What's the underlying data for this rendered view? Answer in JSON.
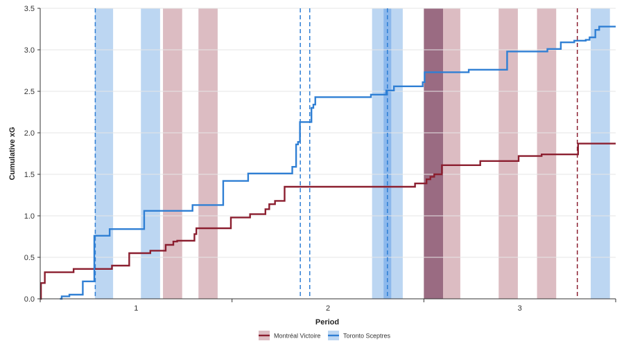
{
  "chart_data": {
    "type": "line",
    "xlabel": "Period",
    "ylabel": "Cumulative xG",
    "xlim": [
      0.5,
      3.5
    ],
    "ylim": [
      0,
      3.5
    ],
    "xticks": [
      1,
      2,
      3
    ],
    "xtick_labels": [
      "1",
      "2",
      "3"
    ],
    "xminor_ticks": [
      0.5,
      1.5,
      2.5,
      3.5
    ],
    "yticks": [
      0,
      0.5,
      1.0,
      1.5,
      2.0,
      2.5,
      3.0,
      3.5
    ],
    "ytick_labels": [
      "0.0",
      "0.5",
      "1.0",
      "1.5",
      "2.0",
      "2.5",
      "3.0",
      "3.5"
    ],
    "grid": "horizontal",
    "legend_position": "bottom-center",
    "series": [
      {
        "name": "Montréal Victoire",
        "color": "#8b1e2f",
        "steps": [
          [
            0.5,
            0.0
          ],
          [
            0.504,
            0.19
          ],
          [
            0.524,
            0.32
          ],
          [
            0.674,
            0.36
          ],
          [
            0.874,
            0.4
          ],
          [
            0.964,
            0.55
          ],
          [
            1.074,
            0.58
          ],
          [
            1.154,
            0.65
          ],
          [
            1.194,
            0.69
          ],
          [
            1.214,
            0.7
          ],
          [
            1.304,
            0.78
          ],
          [
            1.314,
            0.85
          ],
          [
            1.494,
            0.98
          ],
          [
            1.594,
            1.02
          ],
          [
            1.674,
            1.08
          ],
          [
            1.694,
            1.14
          ],
          [
            1.724,
            1.18
          ],
          [
            1.774,
            1.35
          ],
          [
            2.454,
            1.39
          ],
          [
            2.514,
            1.44
          ],
          [
            2.534,
            1.47
          ],
          [
            2.554,
            1.5
          ],
          [
            2.594,
            1.61
          ],
          [
            2.794,
            1.66
          ],
          [
            2.994,
            1.72
          ],
          [
            3.114,
            1.74
          ],
          [
            3.304,
            1.87
          ],
          [
            3.5,
            1.87
          ]
        ]
      },
      {
        "name": "Toronto Sceptres",
        "color": "#2f7fd4",
        "steps": [
          [
            0.603,
            0.0
          ],
          [
            0.612,
            0.03
          ],
          [
            0.652,
            0.05
          ],
          [
            0.722,
            0.21
          ],
          [
            0.782,
            0.76
          ],
          [
            0.862,
            0.84
          ],
          [
            1.042,
            1.06
          ],
          [
            1.294,
            1.13
          ],
          [
            1.454,
            1.42
          ],
          [
            1.584,
            1.51
          ],
          [
            1.814,
            1.59
          ],
          [
            1.834,
            1.86
          ],
          [
            1.844,
            1.89
          ],
          [
            1.854,
            2.13
          ],
          [
            1.914,
            2.3
          ],
          [
            1.924,
            2.34
          ],
          [
            1.934,
            2.43
          ],
          [
            2.224,
            2.46
          ],
          [
            2.304,
            2.51
          ],
          [
            2.344,
            2.56
          ],
          [
            2.494,
            2.61
          ],
          [
            2.504,
            2.73
          ],
          [
            2.734,
            2.76
          ],
          [
            2.934,
            2.98
          ],
          [
            3.144,
            3.01
          ],
          [
            3.214,
            3.09
          ],
          [
            3.284,
            3.11
          ],
          [
            3.344,
            3.12
          ],
          [
            3.364,
            3.15
          ],
          [
            3.394,
            3.24
          ],
          [
            3.414,
            3.28
          ],
          [
            3.5,
            3.28
          ]
        ]
      }
    ],
    "power_play_bands": [
      {
        "team": "Toronto Sceptres",
        "start": 0.785,
        "end": 0.88,
        "color": "#bcd6f2"
      },
      {
        "team": "Toronto Sceptres",
        "start": 1.025,
        "end": 1.125,
        "color": "#bcd6f2"
      },
      {
        "team": "Montréal Victoire",
        "start": 1.14,
        "end": 1.24,
        "color": "#dcbcc2"
      },
      {
        "team": "Montréal Victoire",
        "start": 1.325,
        "end": 1.425,
        "color": "#dcbcc2"
      },
      {
        "team": "Toronto Sceptres",
        "start": 2.23,
        "end": 2.39,
        "color": "#bcd6f2"
      },
      {
        "team": "Toronto Sceptres",
        "start": 2.29,
        "end": 2.33,
        "color": "#8cb8ec"
      },
      {
        "team": "Montréal Victoire",
        "start": 2.5,
        "end": 2.6,
        "color": "#9a6b82"
      },
      {
        "team": "Montréal Victoire",
        "start": 2.6,
        "end": 2.69,
        "color": "#dcbcc2"
      },
      {
        "team": "Montréal Victoire",
        "start": 2.89,
        "end": 2.99,
        "color": "#dcbcc2"
      },
      {
        "team": "Montréal Victoire",
        "start": 3.09,
        "end": 3.19,
        "color": "#dcbcc2"
      },
      {
        "team": "Toronto Sceptres",
        "start": 3.37,
        "end": 3.47,
        "color": "#bcd6f2"
      }
    ],
    "goal_markers": [
      {
        "team": "Toronto Sceptres",
        "x": 0.787,
        "color": "#2f7fd4"
      },
      {
        "team": "Toronto Sceptres",
        "x": 1.856,
        "color": "#2f7fd4"
      },
      {
        "team": "Toronto Sceptres",
        "x": 1.905,
        "color": "#2f7fd4"
      },
      {
        "team": "Toronto Sceptres",
        "x": 2.31,
        "color": "#2f7fd4"
      },
      {
        "team": "Montréal Victoire",
        "x": 3.3,
        "color": "#8b1e2f"
      }
    ]
  }
}
